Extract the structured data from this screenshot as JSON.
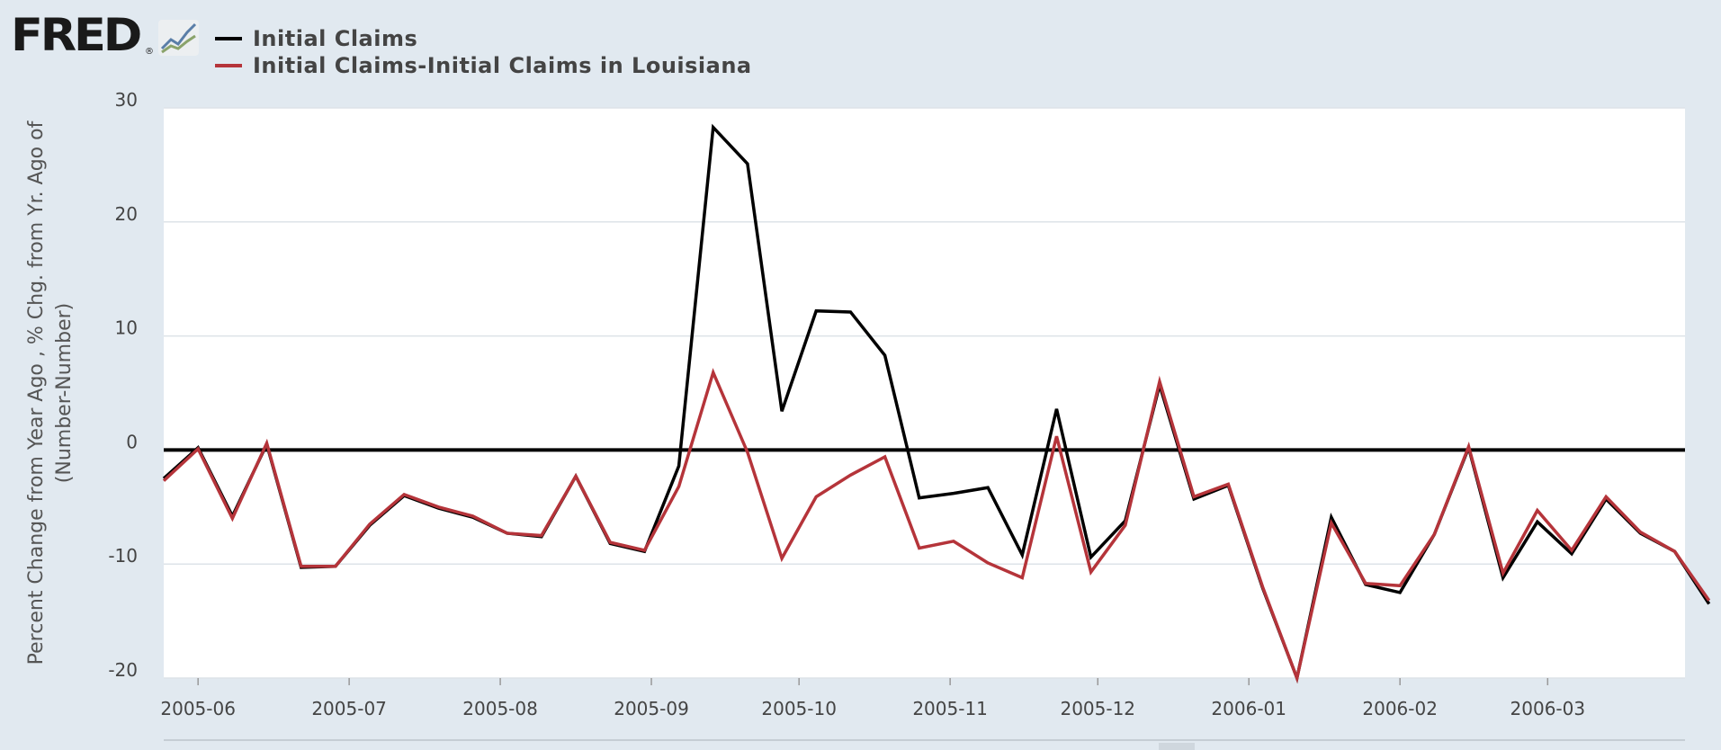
{
  "brand": {
    "logo_text": "FRED",
    "registered_mark": "®",
    "graph_icon": "fred-graph-icon"
  },
  "legend": [
    {
      "label": "Initial Claims",
      "color": "#000000"
    },
    {
      "label": "Initial Claims-Initial Claims in Louisiana",
      "color": "#b5343a"
    }
  ],
  "chart_data": {
    "type": "line",
    "title": "",
    "xlabel": "",
    "ylabel_lines": [
      "Percent Change from Year Ago , % Chg. from Yr. Ago of",
      "(Number-Number)"
    ],
    "ylim": [
      -20,
      30
    ],
    "yticks": [
      30,
      20,
      10,
      0,
      -10,
      -20
    ],
    "xlim_index": [
      0,
      44.3
    ],
    "xticks": [
      {
        "label": "2005-06",
        "index": 1
      },
      {
        "label": "2005-07",
        "index": 5.4
      },
      {
        "label": "2005-08",
        "index": 9.8
      },
      {
        "label": "2005-09",
        "index": 14.2
      },
      {
        "label": "2005-10",
        "index": 18.5
      },
      {
        "label": "2005-11",
        "index": 22.9
      },
      {
        "label": "2005-12",
        "index": 27.2
      },
      {
        "label": "2006-01",
        "index": 31.6
      },
      {
        "label": "2006-02",
        "index": 36
      },
      {
        "label": "2006-03",
        "index": 40.3
      }
    ],
    "zero_line": 0,
    "series": [
      {
        "name": "Initial Claims",
        "color": "#000000",
        "values": [
          -2.5,
          0.2,
          -5.8,
          0.5,
          -10.3,
          -10.2,
          -6.6,
          -4.0,
          -5.1,
          -5.9,
          -7.3,
          -7.6,
          -2.3,
          -8.2,
          -8.9,
          -1.4,
          28.3,
          25.1,
          3.4,
          12.2,
          12.1,
          8.3,
          -4.2,
          -3.8,
          -3.3,
          -9.2,
          3.6,
          -9.4,
          -6.2,
          5.7,
          -4.3,
          -3.1,
          -12.1,
          -20.0,
          -5.9,
          -11.8,
          -12.5,
          -7.4,
          0.2,
          -11.2,
          -6.3,
          -9.1,
          -4.3,
          -7.3,
          -8.9,
          -13.5
        ]
      },
      {
        "name": "Initial Claims-Initial Claims in Louisiana",
        "color": "#b5343a",
        "values": [
          -2.7,
          0.1,
          -6.0,
          0.6,
          -10.2,
          -10.2,
          -6.5,
          -3.9,
          -5.0,
          -5.8,
          -7.3,
          -7.5,
          -2.3,
          -8.1,
          -8.8,
          -3.2,
          6.8,
          -0.2,
          -9.5,
          -4.1,
          -2.2,
          -0.6,
          -8.6,
          -8.0,
          -9.9,
          -11.2,
          1.2,
          -10.7,
          -6.6,
          6.0,
          -4.1,
          -3.0,
          -12.0,
          -20.0,
          -6.4,
          -11.7,
          -11.9,
          -7.4,
          0.3,
          -10.8,
          -5.3,
          -8.8,
          -4.1,
          -7.2,
          -8.9,
          -13.2
        ]
      }
    ]
  }
}
